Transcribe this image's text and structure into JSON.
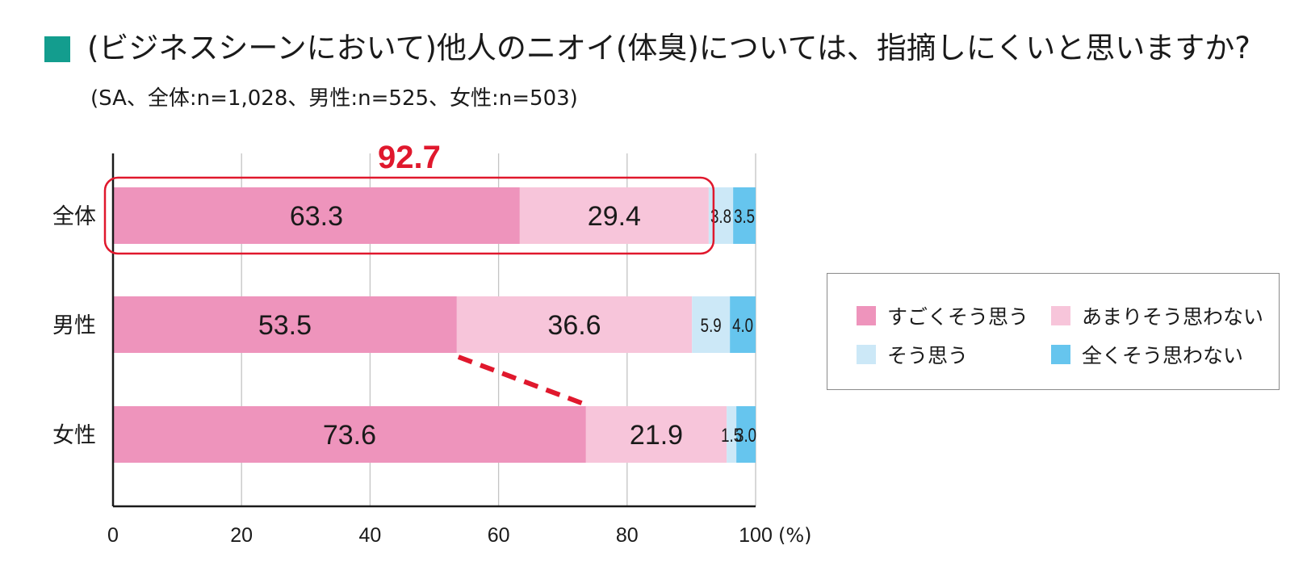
{
  "title": "(ビジネスシーンにおいて)他人のニオイ(体臭)については、指摘しにくいと思いますか?",
  "subtitle": "(SA、全体:n=1,028、男性:n=525、女性:n=503)",
  "title_marker_color": "#139d8e",
  "chart_data": {
    "type": "bar",
    "orientation": "horizontal",
    "stacked": true,
    "categories": [
      "全体",
      "男性",
      "女性"
    ],
    "series": [
      {
        "name": "すごくそう思う",
        "color": "#ee94bc",
        "values": [
          63.3,
          53.5,
          73.6
        ]
      },
      {
        "name": "あまりそう思わない",
        "color": "#f7c5da",
        "values": [
          29.4,
          36.6,
          21.9
        ]
      },
      {
        "name": "そう思う",
        "color": "#cce8f7",
        "values": [
          3.8,
          5.9,
          1.5
        ]
      },
      {
        "name": "全くそう思わない",
        "color": "#66c5ee",
        "values": [
          3.5,
          4.0,
          3.0
        ]
      }
    ],
    "data_labels": [
      [
        "63.3",
        "29.4",
        "3.8",
        "3.5"
      ],
      [
        "53.5",
        "36.6",
        "5.9",
        "4.0"
      ],
      [
        "73.6",
        "21.9",
        "1.5",
        "3.0"
      ]
    ],
    "xlim": [
      0,
      100
    ],
    "xticks": [
      "0",
      "20",
      "40",
      "60",
      "80",
      "100"
    ],
    "x_unit_label": "(%)",
    "grid": true,
    "highlight": {
      "category": "全体",
      "value_label": "92.7",
      "color": "#e0182d"
    },
    "connector": {
      "from_category": "男性",
      "to_category": "女性",
      "color": "#e0182d",
      "style": "dashed"
    },
    "legend_position": "right"
  }
}
